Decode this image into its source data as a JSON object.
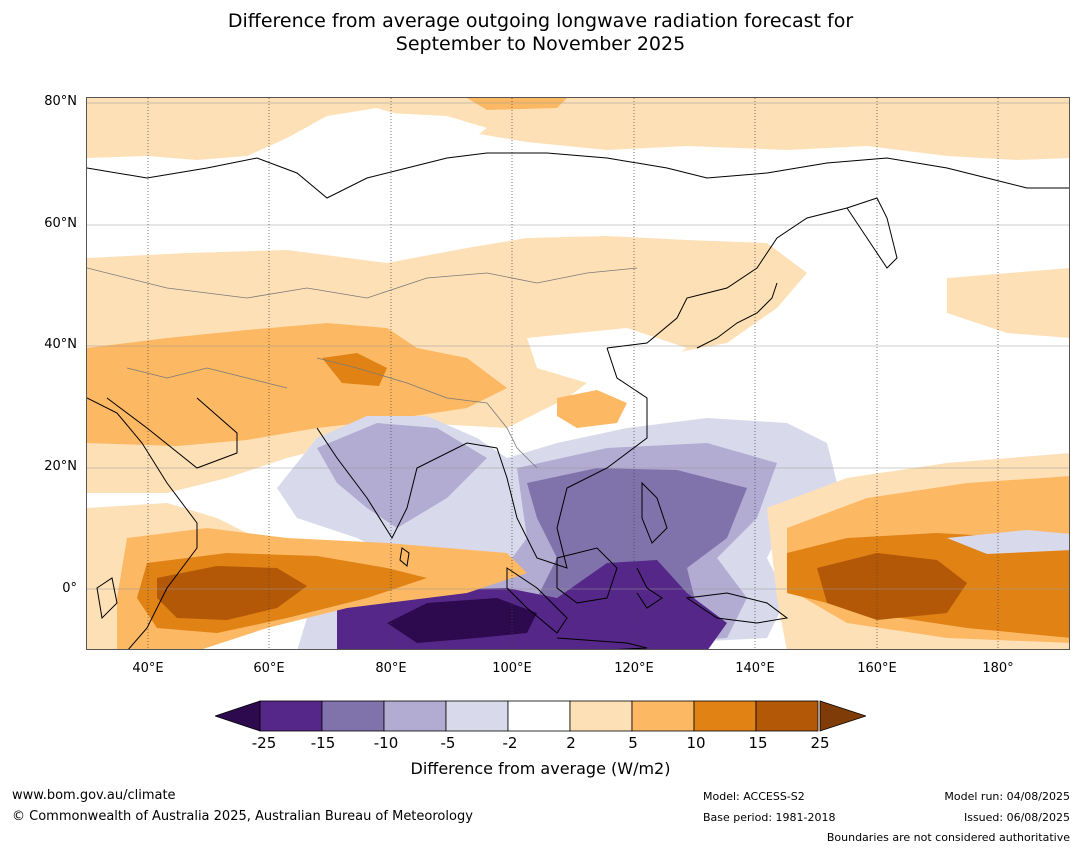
{
  "title": {
    "line1": "Difference from average outgoing longwave radiation forecast for",
    "line2": "September to November 2025"
  },
  "map": {
    "lat_labels": [
      "80°N",
      "60°N",
      "40°N",
      "20°N",
      "0°"
    ],
    "lon_labels": [
      "40°E",
      "60°E",
      "80°E",
      "100°E",
      "120°E",
      "140°E",
      "160°E",
      "180°"
    ],
    "extent": {
      "lon_min": 30,
      "lon_max": 192,
      "lat_min": -10,
      "lat_max": 81
    },
    "colors": {
      "deep_purple_lt_-25": "#2d0a4e",
      "purple_-25_-15": "#552788",
      "purple_-15_-10": "#8073ac",
      "lavender_-10_-5": "#b2abd2",
      "light_lavender_-5_-2": "#d8daeb",
      "neutral_-2_2": "#ffffff",
      "pale_orange_2_5": "#fee0b6",
      "orange_5_10": "#fdb863",
      "dark_orange_10_15": "#e08214",
      "brown_15_25": "#b35806",
      "dark_brown_gt_25": "#7f3b08"
    }
  },
  "colorbar": {
    "ticks": [
      "-25",
      "-15",
      "-10",
      "-5",
      "-2",
      "2",
      "5",
      "10",
      "15",
      "25"
    ],
    "label": "Difference from average (W/m2)",
    "colors": [
      "#552788",
      "#8073ac",
      "#b2abd2",
      "#d8daeb",
      "#ffffff",
      "#fee0b6",
      "#fdb863",
      "#e08214",
      "#b35806"
    ],
    "under_color": "#2d0a4e",
    "over_color": "#7f3b08"
  },
  "footer": {
    "website": "www.bom.gov.au/climate",
    "copyright": "© Commonwealth of Australia 2025, Australian Bureau of Meteorology",
    "model": "Model: ACCESS-S2",
    "base_period": "Base period: 1981-2018",
    "model_run": "Model run: 04/08/2025",
    "issued": "Issued: 06/08/2025",
    "disclaimer": "Boundaries are not considered authoritative"
  }
}
